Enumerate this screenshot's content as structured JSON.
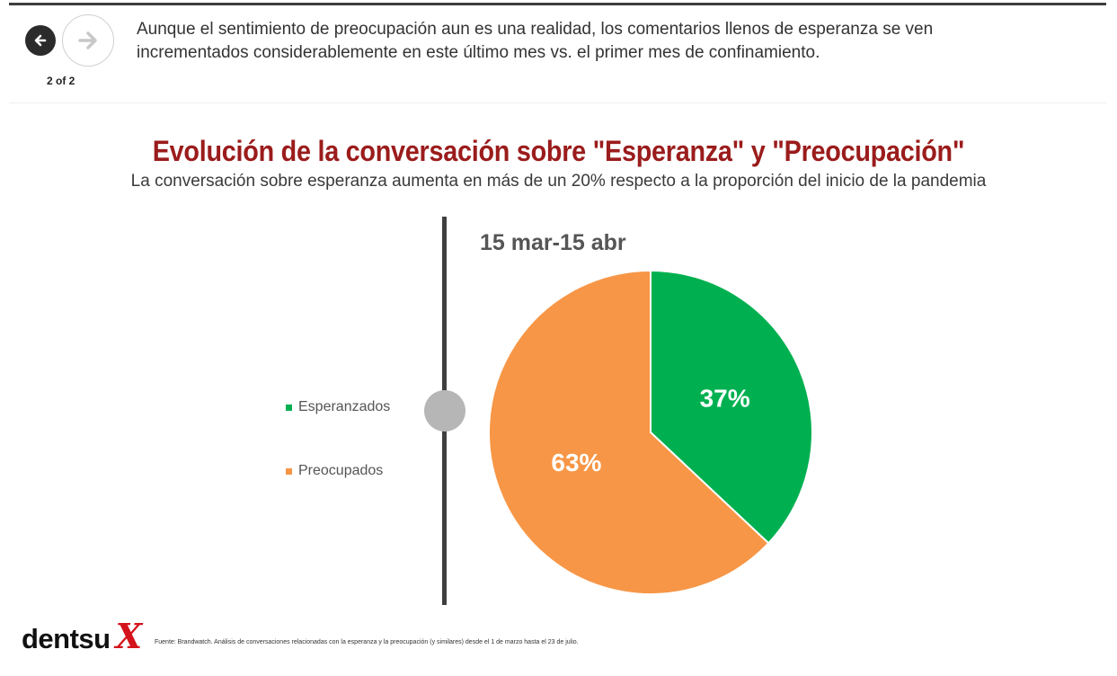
{
  "navigation": {
    "prev_icon": "arrow-left-icon",
    "next_icon": "arrow-right-icon",
    "pager": "2 of 2"
  },
  "caption": "Aunque el sentimiento de preocupación aun es una realidad, los comentarios llenos de esperanza se ven incrementados considerablemente en este último mes vs. el primer mes de confinamiento.",
  "chart": {
    "title": "Evolución de la conversación sobre \"Esperanza\" y \"Preocupación\"",
    "subtitle": "La conversación sobre esperanza aumenta en más de un 20% respecto a la proporción del inicio de la pandemia",
    "period": "15 mar-15 abr"
  },
  "chart_data": {
    "type": "pie",
    "title": "Evolución de la conversación sobre \"Esperanza\" y \"Preocupación\"",
    "period": "15 mar-15 abr",
    "labels": [
      "Esperanzados",
      "Preocupados"
    ],
    "values": [
      37,
      63
    ],
    "value_labels": [
      "37%",
      "63%"
    ],
    "colors": [
      "#00b050",
      "#f79646"
    ],
    "legend": "left"
  },
  "footer": {
    "logo_text": "dentsu",
    "logo_mark": "X",
    "source": "Fuente: Brandwatch. Análisis de conversaciones relacionadas con la esperanza y la preocupación (y similares) desde el 1 de marzo hasta el 23 de julio."
  }
}
